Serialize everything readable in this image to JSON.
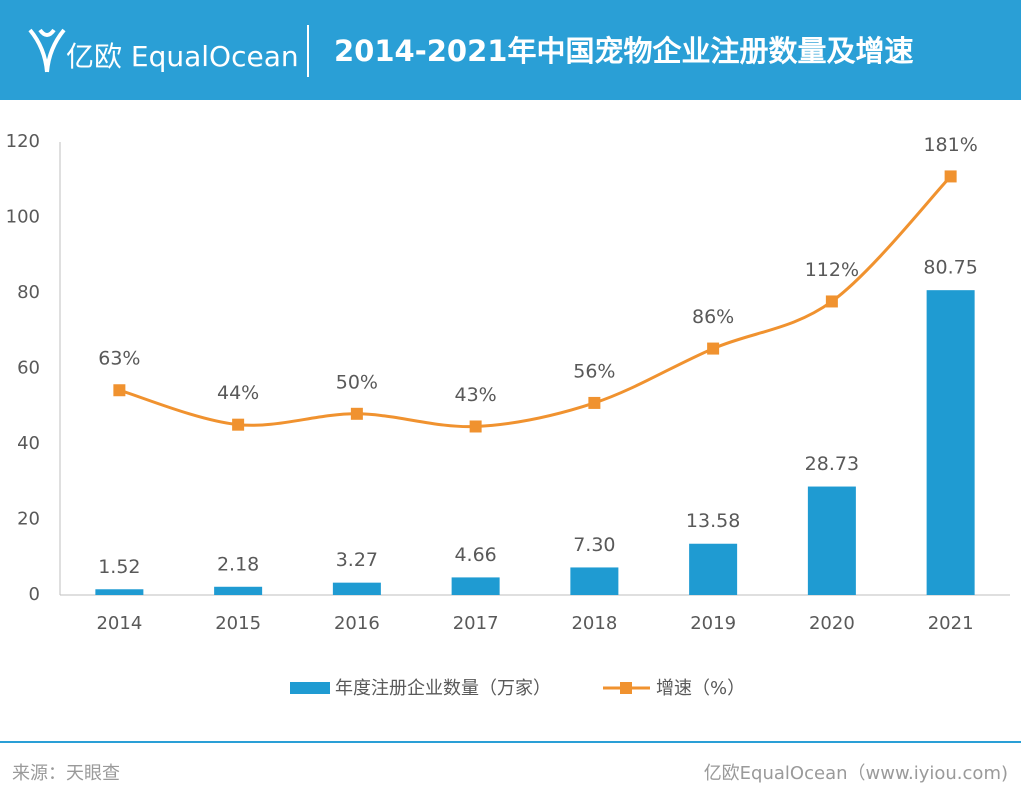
{
  "header": {
    "logo": "亿欧 EqualOcean",
    "title": "2014-2021年中国宠物企业注册数量及增速"
  },
  "chart_data": {
    "type": "bar-line",
    "categories": [
      "2014",
      "2015",
      "2016",
      "2017",
      "2018",
      "2019",
      "2020",
      "2021"
    ],
    "series": [
      {
        "name": "年度注册企业数量（万家）",
        "type": "bar",
        "color": "#1f9bd2",
        "values": [
          1.52,
          2.18,
          3.27,
          4.66,
          7.3,
          13.58,
          28.73,
          80.75
        ],
        "value_labels": [
          "1.52",
          "2.18",
          "3.27",
          "4.66",
          "7.30",
          "13.58",
          "28.73",
          "80.75"
        ]
      },
      {
        "name": "增速（%）",
        "type": "line",
        "axis": "y2",
        "color": "#f0922f",
        "values": [
          63,
          44,
          50,
          43,
          56,
          86,
          112,
          181
        ],
        "value_labels": [
          "63%",
          "44%",
          "50%",
          "43%",
          "56%",
          "86%",
          "112%",
          "181%"
        ]
      }
    ],
    "ylim": [
      0,
      120
    ],
    "yticks": [
      0,
      20,
      40,
      60,
      80,
      100,
      120
    ],
    "y2lim": [
      -50,
      200
    ],
    "grid": false,
    "legend": "bottom"
  },
  "footer": {
    "source": "来源：天眼查",
    "site": "亿欧EqualOcean（www.iyiou.com)"
  }
}
